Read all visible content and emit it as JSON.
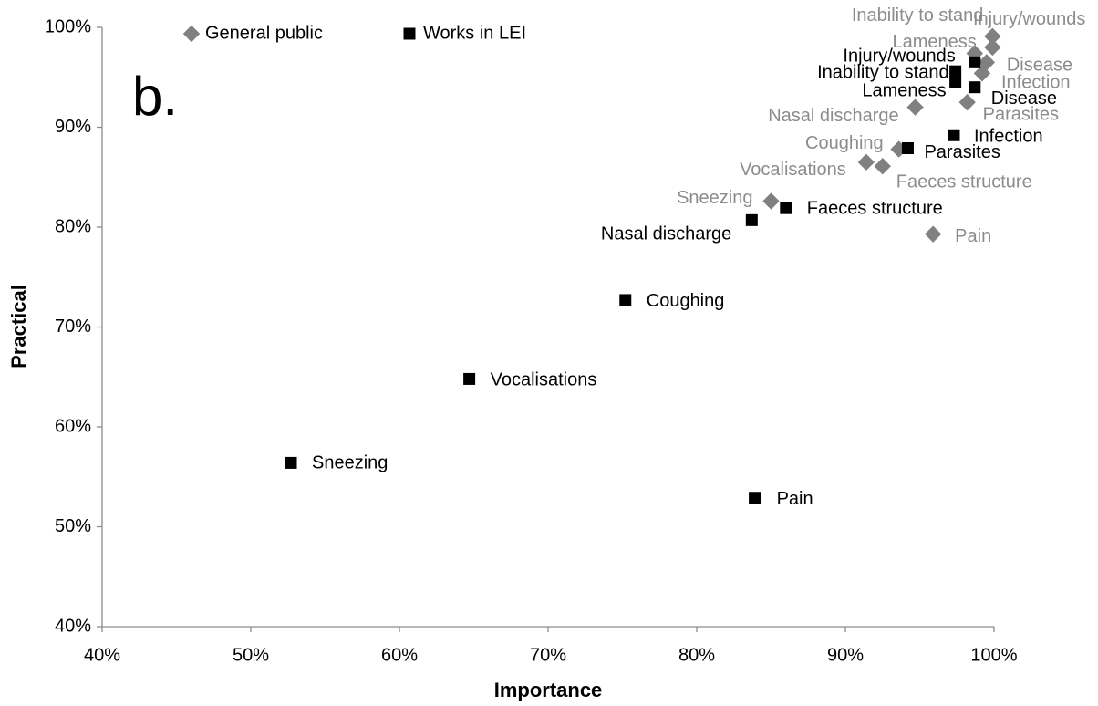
{
  "chart_data": {
    "type": "scatter",
    "annotation": "b.",
    "xlabel": "Importance",
    "ylabel": "Practical",
    "xlim": [
      40,
      100
    ],
    "ylim": [
      40,
      100
    ],
    "xticks": [
      {
        "value": 40,
        "label": "40%"
      },
      {
        "value": 50,
        "label": "50%"
      },
      {
        "value": 60,
        "label": "60%"
      },
      {
        "value": 70,
        "label": "70%"
      },
      {
        "value": 80,
        "label": "80%"
      },
      {
        "value": 90,
        "label": "90%"
      },
      {
        "value": 100,
        "label": "100%"
      }
    ],
    "yticks": [
      {
        "value": 40,
        "label": "40%"
      },
      {
        "value": 50,
        "label": "50%"
      },
      {
        "value": 60,
        "label": "60%"
      },
      {
        "value": 70,
        "label": "70%"
      },
      {
        "value": 80,
        "label": "80%"
      },
      {
        "value": 90,
        "label": "90%"
      },
      {
        "value": 100,
        "label": "100%"
      }
    ],
    "legend": "top-left",
    "series": [
      {
        "name": "General public",
        "color": "#808080",
        "label_color": "#8c8c8c",
        "marker": "diamond",
        "labels": [
          "Injury/wounds",
          "Inability to stand",
          "Lameness",
          "Disease",
          "Infection",
          "Parasites",
          "Nasal discharge",
          "Coughing",
          "Vocalisations",
          "Faeces structure",
          "Sneezing",
          "Pain"
        ],
        "x": [
          99.9,
          99.9,
          98.7,
          99.5,
          99.2,
          98.2,
          94.7,
          93.6,
          91.4,
          92.5,
          85.0,
          95.9
        ],
        "values": [
          99.1,
          98.0,
          97.4,
          96.5,
          95.4,
          92.5,
          92.0,
          87.8,
          86.5,
          86.1,
          82.6,
          79.3
        ]
      },
      {
        "name": "Works in LEI",
        "color": "#000000",
        "label_color": "#000000",
        "marker": "square",
        "labels": [
          "Injury/wounds",
          "Inability to stand",
          "Lameness",
          "Disease",
          "Infection",
          "Parasites",
          "Faeces structure",
          "Nasal discharge",
          "Coughing",
          "Vocalisations",
          "Sneezing",
          "Pain"
        ],
        "x": [
          98.7,
          97.4,
          97.4,
          98.7,
          97.3,
          94.2,
          86.0,
          83.7,
          75.2,
          64.7,
          52.7,
          83.9
        ],
        "values": [
          96.5,
          95.6,
          94.5,
          94.0,
          89.2,
          87.9,
          81.9,
          80.7,
          72.7,
          64.8,
          56.4,
          52.9
        ]
      }
    ]
  }
}
